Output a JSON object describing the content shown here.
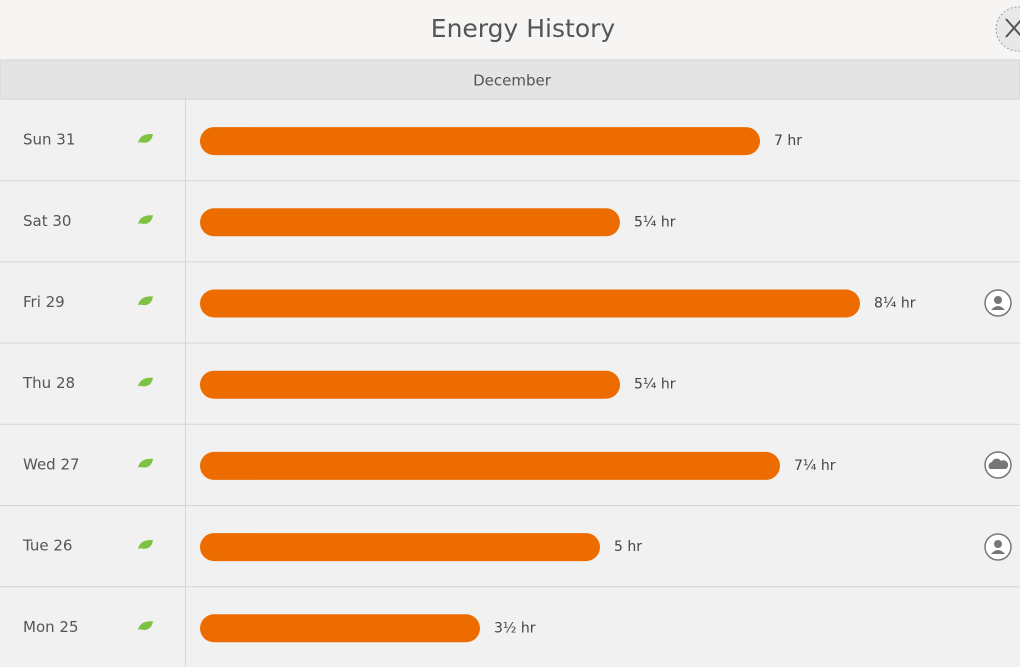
{
  "header": {
    "title": "Energy History"
  },
  "chart_data": {
    "type": "bar",
    "title": "December",
    "categories": [
      "Sun 31",
      "Sat 30",
      "Fri 29",
      "Thu 28",
      "Wed 27",
      "Tue 26",
      "Mon 25"
    ],
    "values": [
      7,
      5.25,
      8.25,
      5.25,
      7.25,
      5,
      3.5
    ],
    "value_labels": [
      "7 hr",
      "5¼ hr",
      "8¼ hr",
      "5¼ hr",
      "7¼ hr",
      "5 hr",
      "3½ hr"
    ],
    "color": "#ec6c00"
  }
}
